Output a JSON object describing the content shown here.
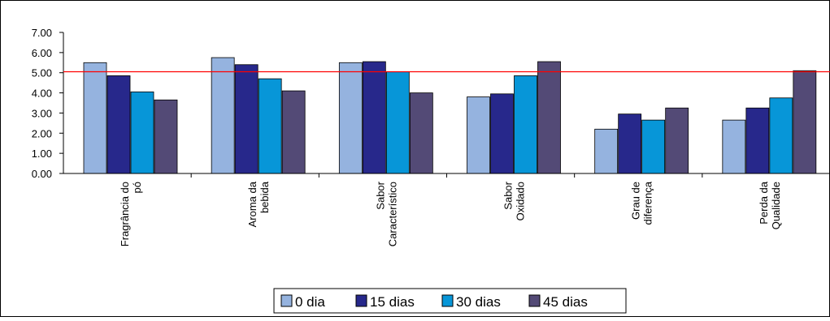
{
  "chart_data": {
    "type": "bar",
    "categories": [
      [
        "Fragrância do",
        "pó"
      ],
      [
        "Aroma da",
        "bebida"
      ],
      [
        "Sabor",
        "Característico"
      ],
      [
        "Sabor",
        "Oxidado"
      ],
      [
        "Grau de",
        "diferença"
      ],
      [
        "Perda da",
        "Qualidade"
      ]
    ],
    "series": [
      {
        "name": "0 dia",
        "color": "#95b3df",
        "values": [
          5.5,
          5.75,
          5.5,
          3.8,
          2.2,
          2.65
        ]
      },
      {
        "name": "15 dias",
        "color": "#27288b",
        "values": [
          4.85,
          5.4,
          5.55,
          3.95,
          2.95,
          3.25
        ]
      },
      {
        "name": "30 dias",
        "color": "#0796d8",
        "values": [
          4.05,
          4.7,
          5.05,
          4.85,
          2.65,
          3.75
        ]
      },
      {
        "name": "45 dias",
        "color": "#534a76",
        "values": [
          3.65,
          4.1,
          4.0,
          5.55,
          3.25,
          5.1
        ]
      }
    ],
    "reference_line": {
      "value": 5.05,
      "color": "#ff0000"
    },
    "yticks": [
      "0.00",
      "1.00",
      "2.00",
      "3.00",
      "4.00",
      "5.00",
      "6.00",
      "7.00"
    ],
    "ylim": [
      0,
      7
    ],
    "title": "",
    "xlabel": "",
    "ylabel": "",
    "grid": false,
    "legend_position": "bottom"
  }
}
